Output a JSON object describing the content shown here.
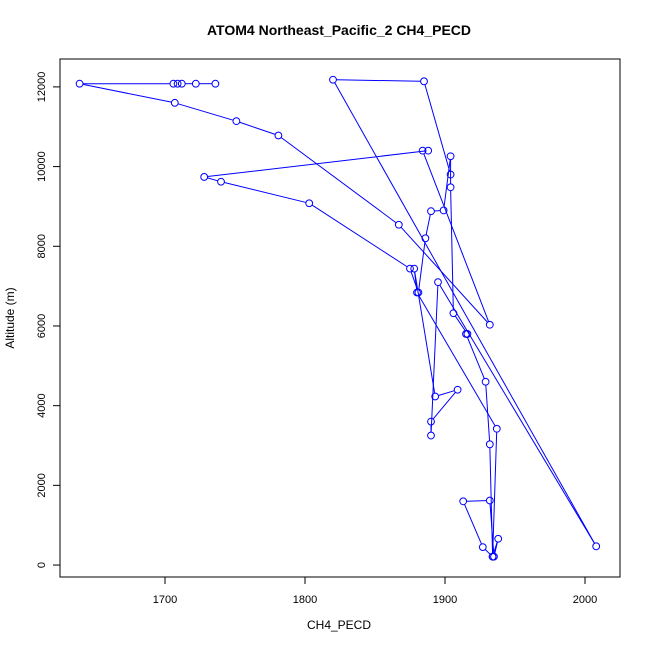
{
  "chart_data": {
    "type": "line",
    "title": "ATOM4 Northeast_Pacific_2 CH4_PECD",
    "xlabel": "CH4_PECD",
    "ylabel": "Altitude (m)",
    "xlim": [
      1625,
      2025
    ],
    "ylim": [
      -300,
      12700
    ],
    "x_ticks": [
      1700,
      1800,
      1900,
      2000
    ],
    "y_ticks": [
      0,
      2000,
      4000,
      6000,
      8000,
      10000,
      12000
    ],
    "line_color": "#0000ff",
    "marker": "open-circle",
    "grid": false,
    "legend": "none",
    "series": [
      {
        "x": [
          1736,
          1722,
          1712,
          1709,
          1706,
          1639,
          1707,
          1751,
          1781,
          1867,
          1932,
          1884,
          1888,
          1728,
          1740,
          1803,
          1875,
          1881,
          1886,
          1890,
          1899,
          1904,
          1904,
          1906,
          1916,
          1915,
          1929,
          1932,
          1934,
          1938,
          1935,
          1932,
          1913,
          1927,
          1934,
          1937,
          1880,
          1878,
          1893,
          1909,
          1890,
          1890,
          1895,
          2008,
          1820,
          1885,
          1904
        ],
        "y": [
          12080,
          12080,
          12080,
          12080,
          12080,
          12080,
          11600,
          11140,
          10780,
          8540,
          6030,
          10400,
          10400,
          9740,
          9620,
          9080,
          7440,
          6840,
          8200,
          8880,
          8900,
          10260,
          9480,
          6320,
          5800,
          5800,
          4600,
          3030,
          210,
          660,
          210,
          1620,
          1600,
          450,
          210,
          3420,
          6840,
          7440,
          4230,
          4400,
          3600,
          3250,
          7100,
          470,
          12180,
          12140,
          9800
        ]
      }
    ]
  }
}
